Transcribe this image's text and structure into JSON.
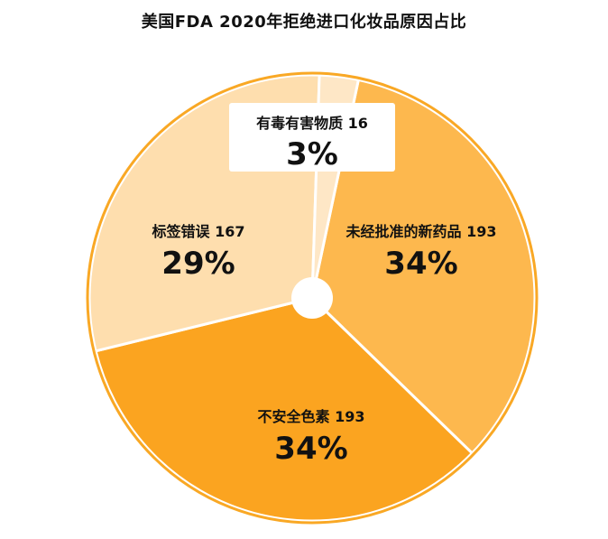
{
  "chart_data": {
    "type": "pie",
    "title": "美国FDA 2020年拒绝进口化妆品原因占比",
    "slices": [
      {
        "label": "未经批准的新药品",
        "value": 193,
        "percent": "34%",
        "color": "#FDB84E"
      },
      {
        "label": "不安全色素",
        "value": 193,
        "percent": "34%",
        "color": "#FBA420"
      },
      {
        "label": "标签错误",
        "value": 167,
        "percent": "29%",
        "color": "#FEDEAE"
      },
      {
        "label": "有毒有害物质",
        "value": 16,
        "percent": "3%",
        "color": "#FEE7C6"
      }
    ],
    "outline_color": "#F9A825",
    "separator_color": "#FFFFFF"
  }
}
